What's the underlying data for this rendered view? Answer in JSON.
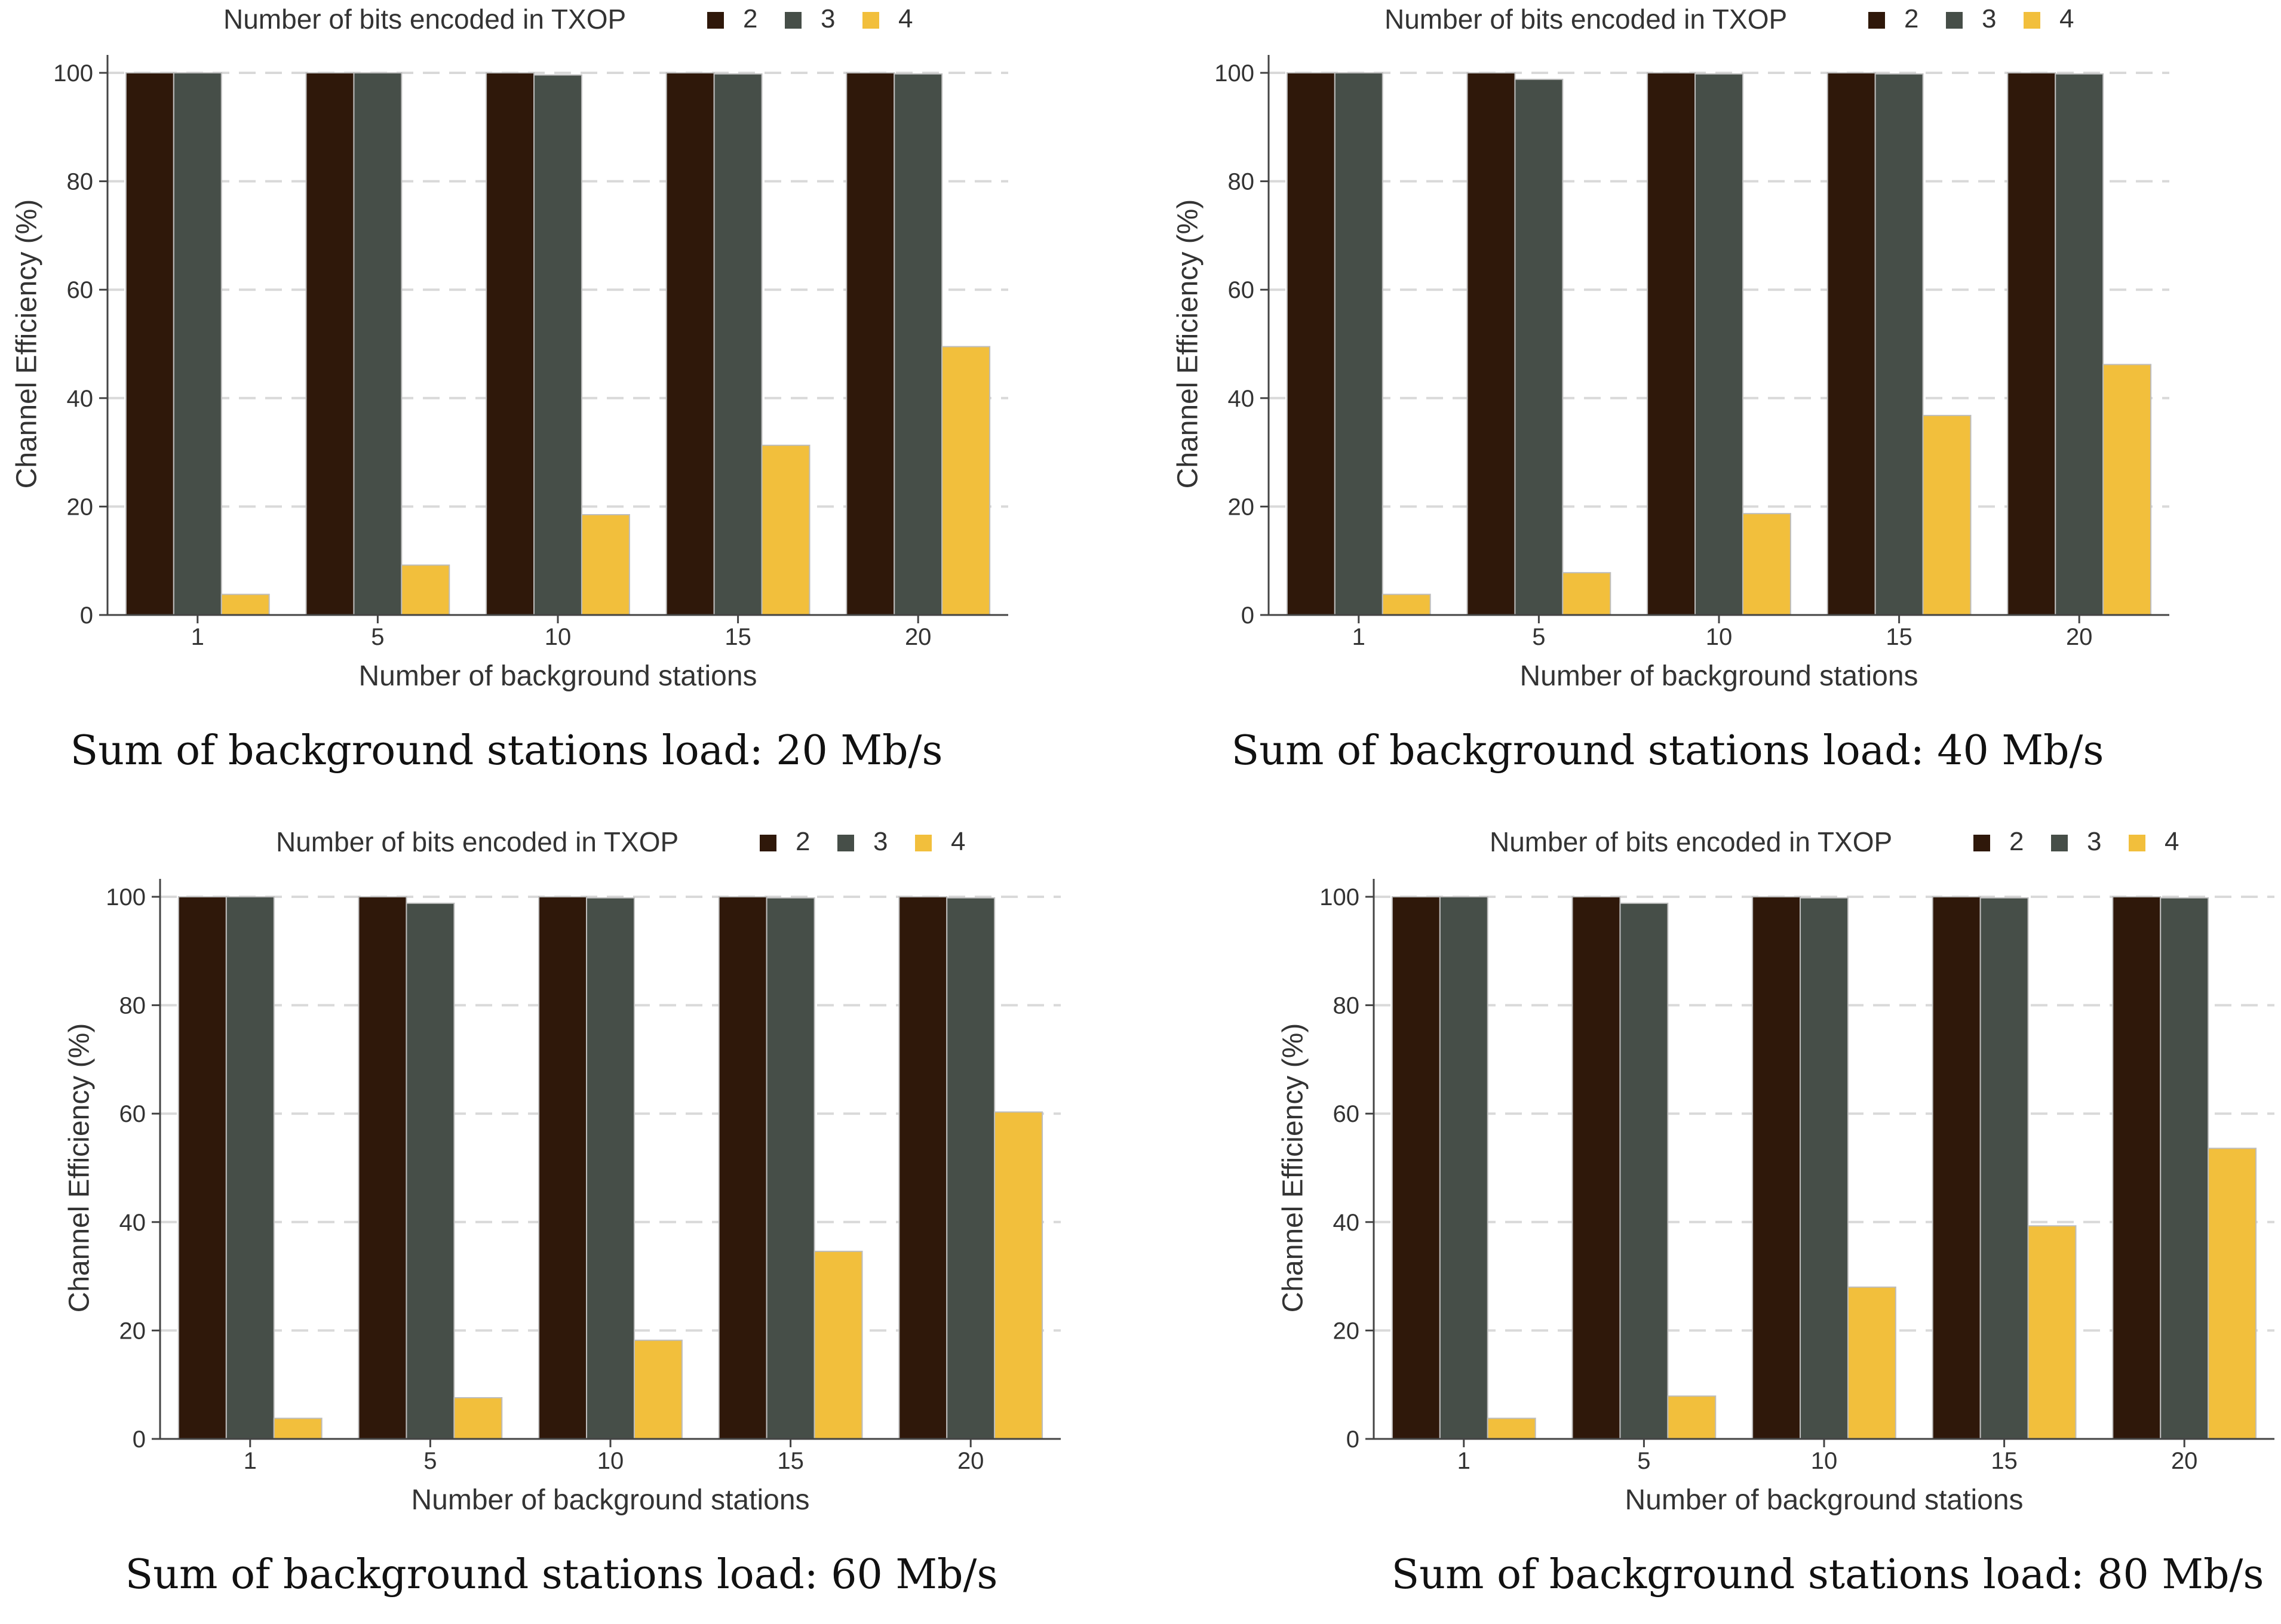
{
  "colors": {
    "series_2": "#2f180a",
    "series_3": "#464e48",
    "series_4": "#f2bf3c",
    "axis": "#444444",
    "grid": "#d9d9d9",
    "text": "#333333",
    "bar_edge": "#bdbdbd"
  },
  "chart_data": [
    {
      "type": "bar",
      "caption": "Sum of background stations load: 20 Mb/s",
      "legend_title": "Number of bits encoded in TXOP",
      "xlabel": "Number of background stations",
      "ylabel": "Channel Efficiency (%)",
      "categories": [
        "1",
        "5",
        "10",
        "15",
        "20"
      ],
      "ylim": [
        0,
        100
      ],
      "yticks": [
        "0",
        "20",
        "40",
        "60",
        "80",
        "100"
      ],
      "series": [
        {
          "name": "2",
          "values": [
            100,
            100,
            100,
            100,
            100
          ]
        },
        {
          "name": "3",
          "values": [
            100,
            100,
            99.6,
            99.8,
            99.8
          ]
        },
        {
          "name": "4",
          "values": [
            3.8,
            9.2,
            18.5,
            31.3,
            49.5
          ]
        }
      ]
    },
    {
      "type": "bar",
      "caption": "Sum of background stations load: 40 Mb/s",
      "legend_title": "Number of bits encoded in TXOP",
      "xlabel": "Number of background stations",
      "ylabel": "Channel Efficiency (%)",
      "categories": [
        "1",
        "5",
        "10",
        "15",
        "20"
      ],
      "ylim": [
        0,
        100
      ],
      "yticks": [
        "0",
        "20",
        "40",
        "60",
        "80",
        "100"
      ],
      "series": [
        {
          "name": "2",
          "values": [
            100,
            100,
            100,
            100,
            100
          ]
        },
        {
          "name": "3",
          "values": [
            100,
            98.8,
            99.8,
            99.8,
            99.8
          ]
        },
        {
          "name": "4",
          "values": [
            3.8,
            7.8,
            18.7,
            36.8,
            46.2
          ]
        }
      ]
    },
    {
      "type": "bar",
      "caption": "Sum of background stations load: 60 Mb/s",
      "legend_title": "Number of bits encoded in TXOP",
      "xlabel": "Number of background stations",
      "ylabel": "Channel Efficiency (%)",
      "categories": [
        "1",
        "5",
        "10",
        "15",
        "20"
      ],
      "ylim": [
        0,
        100
      ],
      "yticks": [
        "0",
        "20",
        "40",
        "60",
        "80",
        "100"
      ],
      "series": [
        {
          "name": "2",
          "values": [
            100,
            100,
            100,
            100,
            100
          ]
        },
        {
          "name": "3",
          "values": [
            100,
            98.8,
            99.8,
            99.8,
            99.8
          ]
        },
        {
          "name": "4",
          "values": [
            3.8,
            7.6,
            18.2,
            34.6,
            60.3
          ]
        }
      ]
    },
    {
      "type": "bar",
      "caption": "Sum of background stations load: 80 Mb/s",
      "legend_title": "Number of bits encoded in TXOP",
      "xlabel": "Number of background stations",
      "ylabel": "Channel Efficiency (%)",
      "categories": [
        "1",
        "5",
        "10",
        "15",
        "20"
      ],
      "ylim": [
        0,
        100
      ],
      "yticks": [
        "0",
        "20",
        "40",
        "60",
        "80",
        "100"
      ],
      "series": [
        {
          "name": "2",
          "values": [
            100,
            100,
            100,
            100,
            100
          ]
        },
        {
          "name": "3",
          "values": [
            100,
            98.8,
            99.8,
            99.8,
            99.8
          ]
        },
        {
          "name": "4",
          "values": [
            3.8,
            7.9,
            28.0,
            39.3,
            53.6
          ]
        }
      ]
    }
  ]
}
